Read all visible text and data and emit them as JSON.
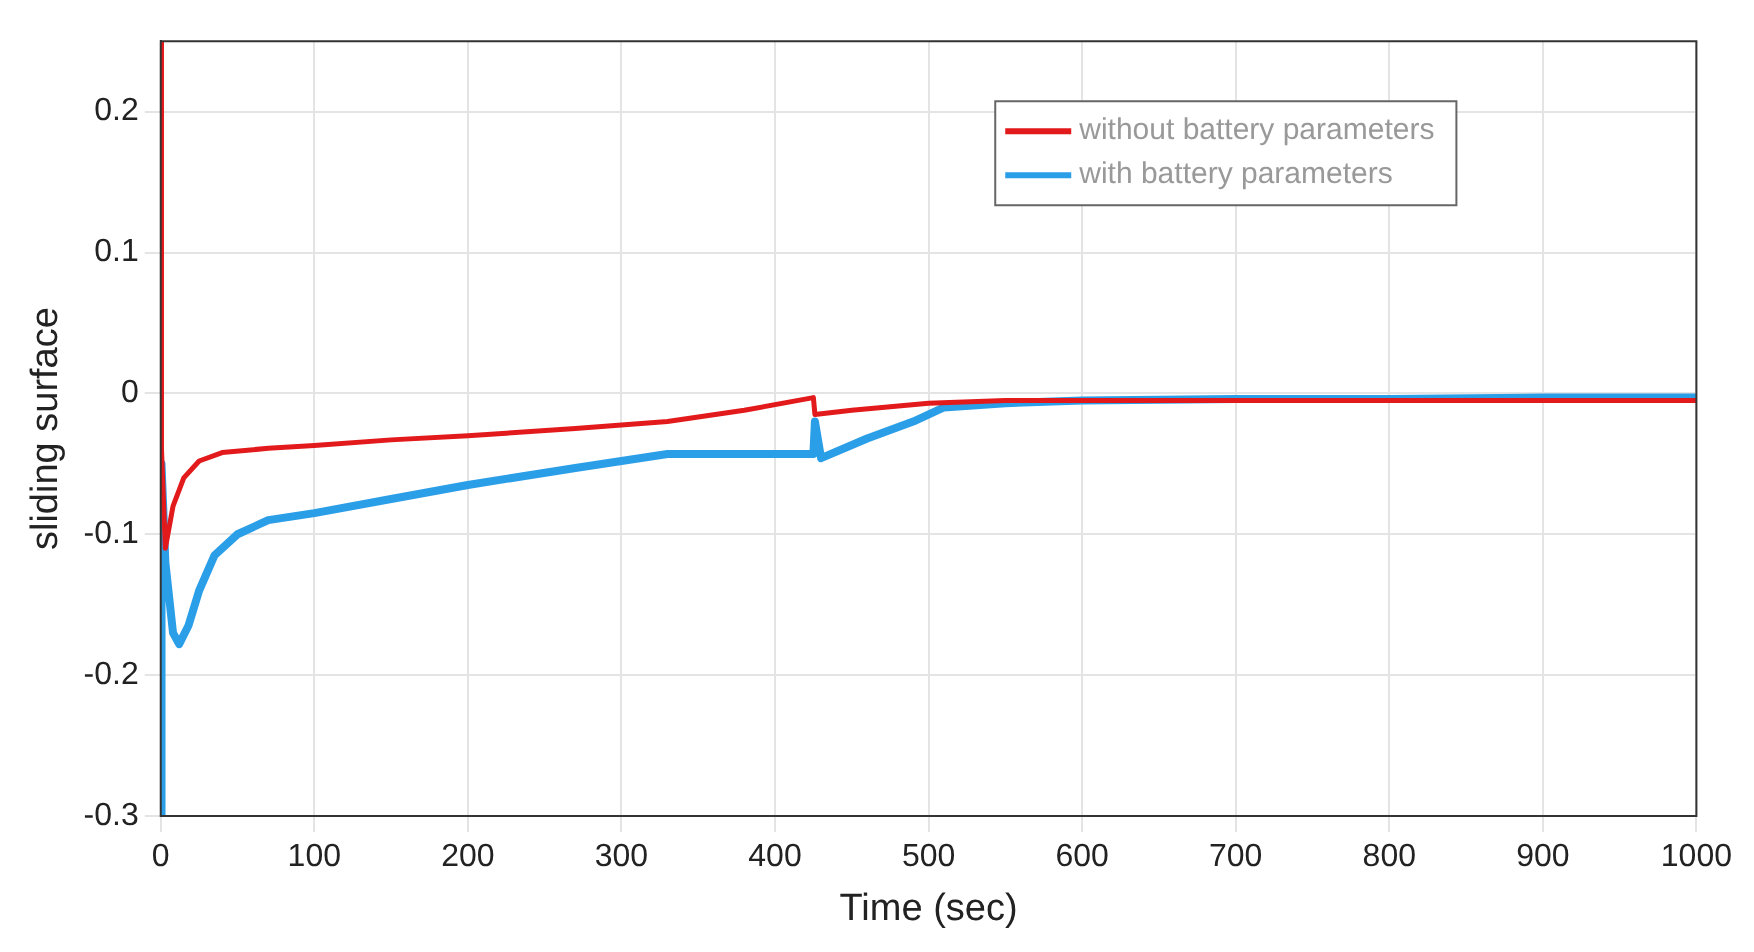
{
  "chart_data": {
    "type": "line",
    "xlabel": "Time (sec)",
    "ylabel": "sliding surface",
    "xlim": [
      0,
      1000
    ],
    "ylim": [
      -0.3,
      0.25
    ],
    "xticks": [
      0,
      100,
      200,
      300,
      400,
      500,
      600,
      700,
      800,
      900,
      1000
    ],
    "yticks": [
      -0.3,
      -0.2,
      -0.1,
      0,
      0.1,
      0.2
    ],
    "grid": true,
    "legend": "top right",
    "marker": "none",
    "line_style": "solid",
    "series": [
      {
        "name": "without battery parameters",
        "color": "#e31a1c",
        "x": [
          0,
          0.5,
          3,
          8,
          15,
          25,
          40,
          70,
          100,
          150,
          200,
          270,
          330,
          380,
          425,
          426,
          450,
          500,
          550,
          600,
          700,
          800,
          900,
          1000
        ],
        "values": [
          0.25,
          -0.04,
          -0.11,
          -0.08,
          -0.06,
          -0.048,
          -0.042,
          -0.039,
          -0.037,
          -0.033,
          -0.03,
          -0.025,
          -0.02,
          -0.012,
          -0.003,
          -0.015,
          -0.012,
          -0.007,
          -0.005,
          -0.005,
          -0.005,
          -0.005,
          -0.005,
          -0.005
        ]
      },
      {
        "name": "with battery parameters",
        "color": "#2b9ee8",
        "x": [
          0,
          0.5,
          3,
          8,
          12,
          18,
          25,
          35,
          50,
          70,
          100,
          150,
          200,
          270,
          330,
          380,
          425,
          426,
          430,
          460,
          490,
          510,
          550,
          600,
          700,
          800,
          900,
          1000
        ],
        "values": [
          -0.3,
          -0.05,
          -0.12,
          -0.17,
          -0.178,
          -0.165,
          -0.14,
          -0.115,
          -0.1,
          -0.09,
          -0.085,
          -0.075,
          -0.065,
          -0.053,
          -0.043,
          -0.043,
          -0.043,
          -0.02,
          -0.046,
          -0.032,
          -0.02,
          -0.01,
          -0.007,
          -0.005,
          -0.004,
          -0.004,
          -0.003,
          -0.003
        ]
      }
    ]
  }
}
